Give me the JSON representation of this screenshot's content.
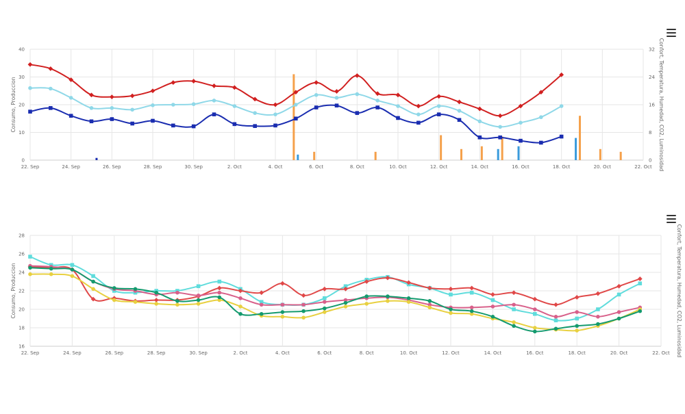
{
  "colors": {
    "red": "#d12020",
    "lightblue": "#8fd8e8",
    "darkblue": "#1a2db0",
    "orange": "#f5a04a",
    "bar_blue": "#3a9bdc",
    "cyan": "#5fdcdc",
    "crimson": "#e04848",
    "pink": "#d8608a",
    "yellow": "#e8d040",
    "green": "#149a6e"
  },
  "chart_data": [
    {
      "type": "line",
      "x_ticks": [
        "22. Sep",
        "24. Sep",
        "26. Sep",
        "28. Sep",
        "30. Sep",
        "2. Oct",
        "4. Oct",
        "6. Oct",
        "8. Oct",
        "10. Oct",
        "12. Oct",
        "14. Oct",
        "16. Oct",
        "18. Oct",
        "20. Oct",
        "22. Oct"
      ],
      "xlim": [
        0,
        30
      ],
      "ylim": [
        0,
        40
      ],
      "y_ticks": [
        "0",
        "10",
        "20",
        "30",
        "40"
      ],
      "ylim_right": [
        0,
        32
      ],
      "y_ticks_right": [
        "0",
        "8",
        "16",
        "24",
        "32"
      ],
      "ylabel": "Consumo, Produccion",
      "ylabel_right": "Confort, Temperatura, Humedad, CO2, Luminosidad",
      "series": [
        {
          "color": "red",
          "marker": "diamond",
          "x": [
            0,
            1,
            2,
            3,
            4,
            5,
            6,
            7,
            8,
            9,
            10,
            11,
            12,
            13,
            14,
            15,
            16,
            17,
            18,
            19,
            20,
            21,
            22,
            23,
            24,
            25,
            26
          ],
          "y": [
            34.5,
            33,
            29,
            23.5,
            22.8,
            23.2,
            25,
            28,
            28.5,
            26.8,
            26.2,
            22,
            20,
            24.5,
            28,
            24.8,
            30.5,
            24,
            23.5,
            19.5,
            23,
            21,
            18.5,
            16,
            19.5,
            24.5,
            30.8
          ]
        },
        {
          "color": "lightblue",
          "marker": "circle",
          "x": [
            0,
            1,
            2,
            3,
            4,
            5,
            6,
            7,
            8,
            9,
            10,
            11,
            12,
            13,
            14,
            15,
            16,
            17,
            18,
            19,
            20,
            21,
            22,
            23,
            24,
            25,
            26
          ],
          "y": [
            26,
            25.8,
            22.5,
            18.8,
            18.8,
            18.2,
            19.8,
            20,
            20.2,
            21.5,
            19.5,
            17,
            16.5,
            20,
            23.5,
            22.5,
            23.8,
            21.5,
            19.5,
            16.5,
            19.5,
            17.8,
            14,
            12,
            13.5,
            15.5,
            19.5
          ]
        },
        {
          "color": "darkblue",
          "marker": "square",
          "x": [
            0,
            1,
            2,
            3,
            4,
            5,
            6,
            7,
            8,
            9,
            10,
            11,
            12,
            13,
            14,
            15,
            16,
            17,
            18,
            19,
            20,
            21,
            22,
            23,
            24,
            25,
            26
          ],
          "y": [
            17.5,
            18.8,
            16,
            14,
            14.8,
            13.2,
            14.2,
            12.5,
            12.2,
            16.5,
            13,
            12.3,
            12.5,
            15,
            19,
            19.7,
            17,
            19,
            15.2,
            13.5,
            16.5,
            14.5,
            8.2,
            8.2,
            7,
            6.3,
            8.5
          ]
        }
      ],
      "bars": [
        {
          "color": "darkblue",
          "x": [
            3.25
          ],
          "y": [
            0.8
          ]
        },
        {
          "color": "orange",
          "x": [
            12.9,
            13.9,
            16.9,
            20.1,
            21.1,
            22.1,
            23.1,
            26.9,
            27.9,
            28.9
          ],
          "y": [
            31,
            3,
            3,
            9,
            4,
            5,
            8.5,
            16,
            4,
            3
          ]
        },
        {
          "color": "bar_blue",
          "x": [
            13.1,
            22.9,
            23.9,
            26.7
          ],
          "y": [
            2,
            4,
            5,
            8
          ]
        }
      ]
    },
    {
      "type": "line",
      "x_ticks": [
        "22. Sep",
        "24. Sep",
        "26. Sep",
        "28. Sep",
        "30. Sep",
        "2. Oct",
        "4. Oct",
        "6. Oct",
        "8. Oct",
        "10. Oct",
        "12. Oct",
        "14. Oct",
        "16. Oct",
        "18. Oct",
        "20. Oct",
        "22. Oct"
      ],
      "xlim": [
        0,
        30
      ],
      "ylim": [
        16,
        28
      ],
      "y_ticks": [
        "16",
        "18",
        "20",
        "22",
        "24",
        "26",
        "28"
      ],
      "ylabel": "Consumo, Produccion",
      "ylabel_right": "Confort, Temperatura, Humedad, CO2, Luminosidad",
      "series": [
        {
          "color": "cyan",
          "marker": "square",
          "x": [
            0,
            1,
            2,
            3,
            4,
            5,
            6,
            7,
            8,
            9,
            10,
            11,
            12,
            13,
            14,
            15,
            16,
            17,
            18,
            19,
            20,
            21,
            22,
            23,
            24,
            25,
            26,
            27,
            28,
            29
          ],
          "y": [
            25.7,
            24.8,
            24.8,
            23.6,
            22,
            21.8,
            22,
            22,
            22.5,
            23,
            22.2,
            20.8,
            20.5,
            20.5,
            21.2,
            22.5,
            23.2,
            23.5,
            22.7,
            22.3,
            21.6,
            21.8,
            21,
            20,
            19.5,
            18.8,
            19,
            20,
            21.6,
            22.8
          ]
        },
        {
          "color": "crimson",
          "marker": "diamond",
          "x": [
            0,
            1,
            2,
            3,
            4,
            5,
            6,
            7,
            8,
            9,
            10,
            11,
            12,
            13,
            14,
            15,
            16,
            17,
            18,
            19,
            20,
            21,
            22,
            23,
            24,
            25,
            26,
            27,
            28,
            29
          ],
          "y": [
            24.6,
            24.5,
            24.3,
            21.1,
            21.2,
            20.9,
            21,
            21,
            21.4,
            22.3,
            22,
            21.8,
            22.8,
            21.5,
            22.2,
            22.2,
            23,
            23.4,
            22.9,
            22.3,
            22.2,
            22.3,
            21.6,
            21.8,
            21.1,
            20.5,
            21.3,
            21.7,
            22.5,
            23.3
          ]
        },
        {
          "color": "pink",
          "marker": "circle",
          "x": [
            0,
            1,
            2,
            3,
            4,
            5,
            6,
            7,
            8,
            9,
            10,
            11,
            12,
            13,
            14,
            15,
            16,
            17,
            18,
            19,
            20,
            21,
            22,
            23,
            24,
            25,
            26,
            27,
            28,
            29
          ],
          "y": [
            24.7,
            24.6,
            24.3,
            23,
            22.2,
            22,
            21.6,
            21.8,
            21.5,
            21.8,
            21.2,
            20.5,
            20.5,
            20.5,
            20.8,
            21,
            21.2,
            21.3,
            21,
            20.5,
            20.2,
            20.2,
            20.3,
            20.5,
            20,
            19.2,
            19.7,
            19.2,
            19.7,
            20.2
          ]
        },
        {
          "color": "yellow",
          "marker": "circle",
          "x": [
            0,
            1,
            2,
            3,
            4,
            5,
            6,
            7,
            8,
            9,
            10,
            11,
            12,
            13,
            14,
            15,
            16,
            17,
            18,
            19,
            20,
            21,
            22,
            23,
            24,
            25,
            26,
            27,
            28,
            29
          ],
          "y": [
            23.8,
            23.8,
            23.6,
            22.2,
            21,
            20.8,
            20.6,
            20.5,
            20.6,
            21,
            20.3,
            19.3,
            19.2,
            19.1,
            19.7,
            20.3,
            20.6,
            20.9,
            20.8,
            20.2,
            19.6,
            19.5,
            19,
            18.6,
            18,
            17.8,
            17.7,
            18.2,
            19,
            20
          ]
        },
        {
          "color": "green",
          "marker": "circle",
          "x": [
            0,
            1,
            2,
            3,
            4,
            5,
            6,
            7,
            8,
            9,
            10,
            11,
            12,
            13,
            14,
            15,
            16,
            17,
            18,
            19,
            20,
            21,
            22,
            23,
            24,
            25,
            26,
            27,
            28,
            29
          ],
          "y": [
            24.5,
            24.4,
            24.3,
            23,
            22.3,
            22.2,
            21.8,
            20.9,
            21,
            21.3,
            19.5,
            19.5,
            19.7,
            19.8,
            20.1,
            20.7,
            21.4,
            21.4,
            21.2,
            20.9,
            20,
            19.8,
            19.2,
            18.2,
            17.6,
            17.9,
            18.2,
            18.4,
            19,
            19.8
          ]
        }
      ]
    }
  ]
}
